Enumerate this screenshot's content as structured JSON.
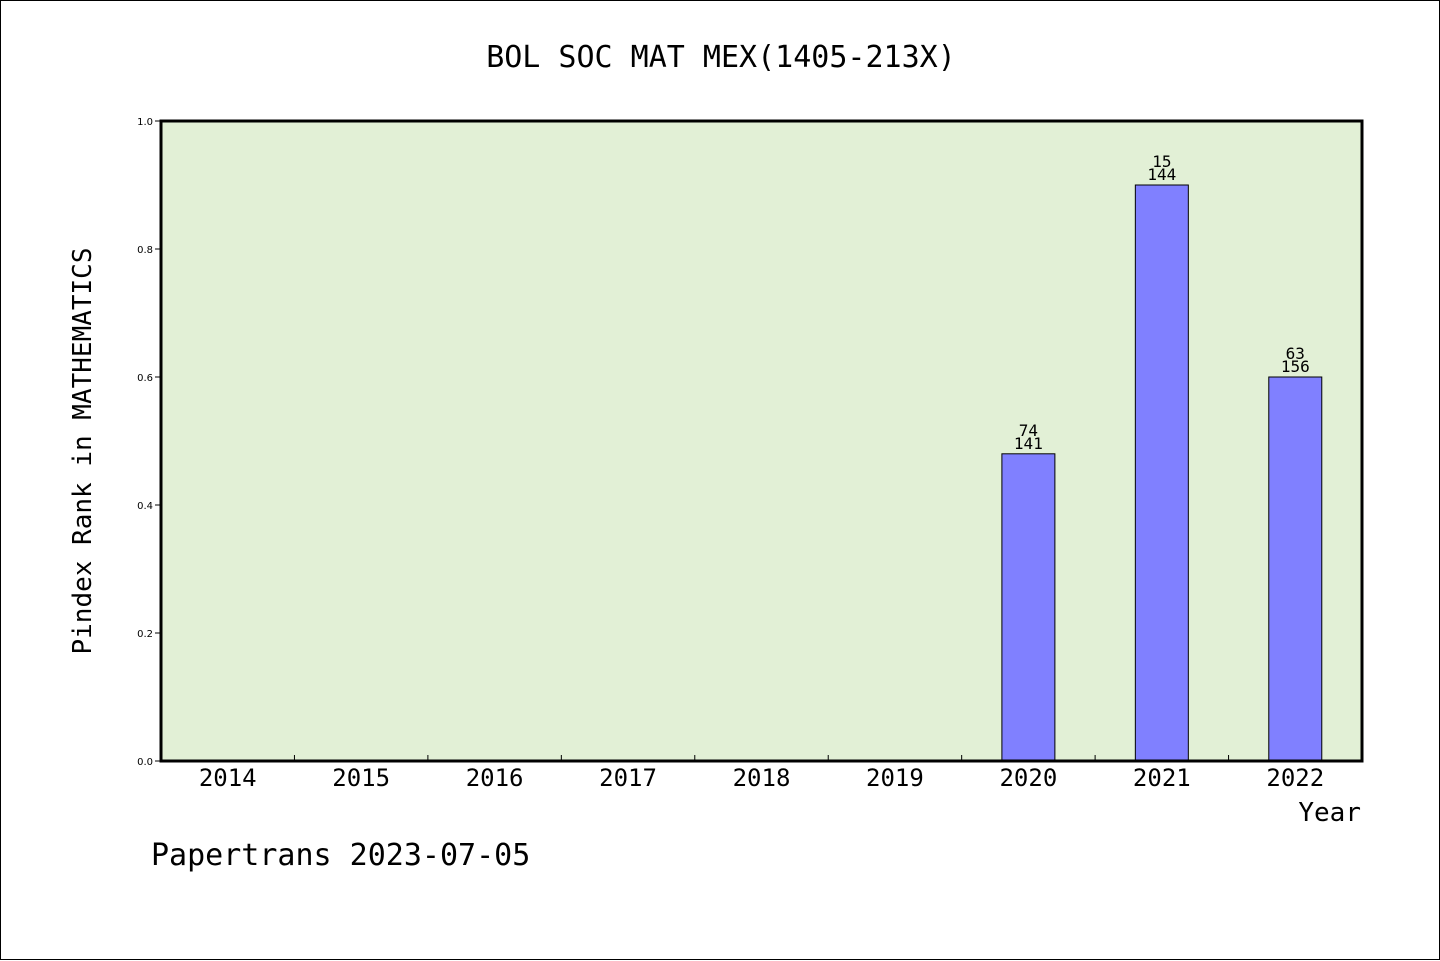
{
  "chart_data": {
    "type": "bar",
    "title": "BOL SOC MAT MEX(1405-213X)",
    "xlabel": "Year",
    "ylabel": "Pindex Rank in MATHEMATICS",
    "categories": [
      "2014",
      "2015",
      "2016",
      "2017",
      "2018",
      "2019",
      "2020",
      "2021",
      "2022"
    ],
    "values": [
      null,
      null,
      null,
      null,
      null,
      null,
      0.48,
      0.9,
      0.6
    ],
    "labels_top": [
      "",
      "",
      "",
      "",
      "",
      "",
      "74",
      "15",
      "63"
    ],
    "labels_bottom": [
      "",
      "",
      "",
      "",
      "",
      "",
      "141",
      "144",
      "156"
    ],
    "ylim": [
      0,
      1.0
    ],
    "yticks": [
      "0.0",
      "0.2",
      "0.4",
      "0.6",
      "0.8",
      "1.0"
    ],
    "ytick_values": [
      0,
      0.2,
      0.4,
      0.6,
      0.8,
      1.0
    ],
    "grid": false,
    "colors": {
      "plot_background": "#e2f0d6",
      "bar_fill": "#8080ff",
      "bar_stroke": "#000000"
    }
  },
  "footer": {
    "text": "Papertrans 2023-07-05"
  }
}
